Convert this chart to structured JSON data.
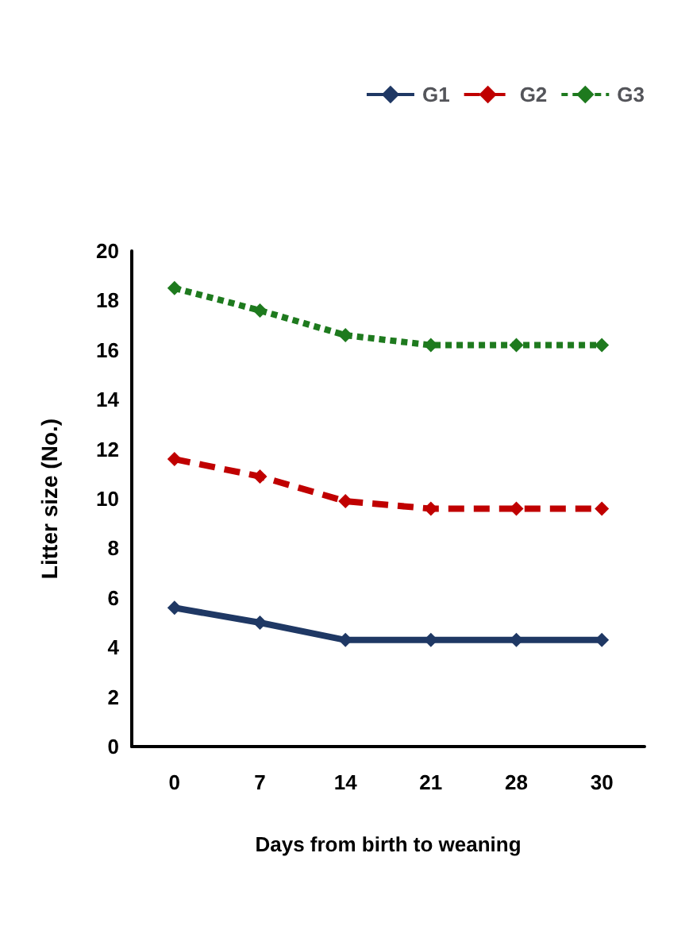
{
  "chart_data": {
    "type": "line",
    "xlabel": "Days from birth to weaning",
    "ylabel": "Litter size (No.)",
    "categories": [
      "0",
      "7",
      "14",
      "21",
      "28",
      "30"
    ],
    "series": [
      {
        "name": "G1",
        "color": "#1f3864",
        "values": [
          5.6,
          5.0,
          4.3,
          4.3,
          4.3,
          4.3
        ],
        "line_style": "solid"
      },
      {
        "name": "G2",
        "color": "#c00000",
        "values": [
          11.6,
          10.9,
          9.9,
          9.6,
          9.6,
          9.6
        ],
        "line_style": "dashed"
      },
      {
        "name": "G3",
        "color": "#1e7a1e",
        "values": [
          18.5,
          17.6,
          16.6,
          16.2,
          16.2,
          16.2
        ],
        "line_style": "dotted"
      }
    ],
    "ylim": [
      0,
      20
    ],
    "yticks": [
      0,
      2,
      4,
      6,
      8,
      10,
      12,
      14,
      16,
      18,
      20
    ],
    "grid": false,
    "legend": "top right",
    "marker": "diamond"
  }
}
